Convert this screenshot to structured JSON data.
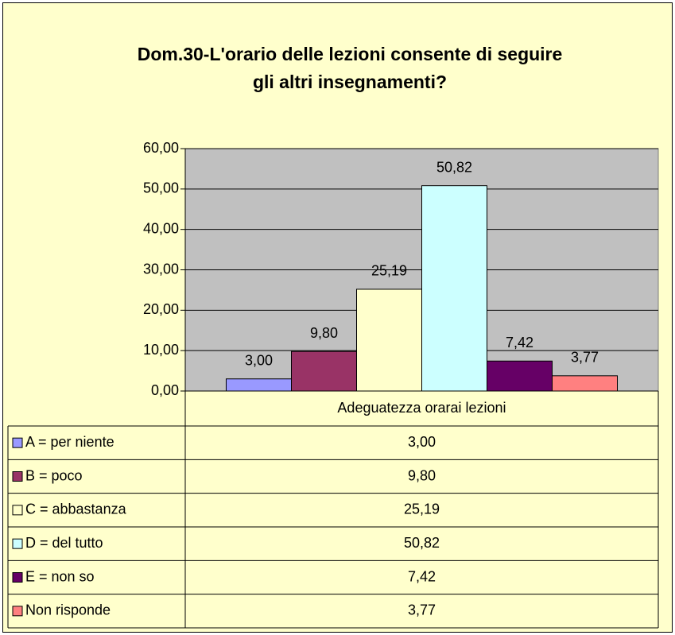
{
  "chart_data": {
    "type": "bar",
    "title": [
      "Dom.30-L'orario delle lezioni consente di seguire",
      "gli altri insegnamenti?"
    ],
    "categories": [
      "Adeguatezza orarai lezioni"
    ],
    "series": [
      {
        "name": "A = per niente",
        "color": "#9999FF",
        "values": [
          3.0
        ],
        "value_labels": [
          "3,00"
        ]
      },
      {
        "name": "B = poco",
        "color": "#993366",
        "values": [
          9.8
        ],
        "value_labels": [
          "9,80"
        ]
      },
      {
        "name": "C = abbastanza",
        "color": "#FFFFCC",
        "values": [
          25.19
        ],
        "value_labels": [
          "25,19"
        ]
      },
      {
        "name": "D = del tutto",
        "color": "#CCFFFF",
        "values": [
          50.82
        ],
        "value_labels": [
          "50,82"
        ]
      },
      {
        "name": "E = non so",
        "color": "#660066",
        "values": [
          7.42
        ],
        "value_labels": [
          "7,42"
        ]
      },
      {
        "name": "Non risponde",
        "color": "#FF8080",
        "values": [
          3.77
        ],
        "value_labels": [
          "3,77"
        ]
      }
    ],
    "ylim": [
      0,
      60
    ],
    "yticks": [
      {
        "value": 0,
        "label": "0,00"
      },
      {
        "value": 10,
        "label": "10,00"
      },
      {
        "value": 20,
        "label": "20,00"
      },
      {
        "value": 30,
        "label": "30,00"
      },
      {
        "value": 40,
        "label": "40,00"
      },
      {
        "value": 50,
        "label": "50,00"
      },
      {
        "value": 60,
        "label": "60,00"
      }
    ],
    "grid": true,
    "legend": "table"
  }
}
